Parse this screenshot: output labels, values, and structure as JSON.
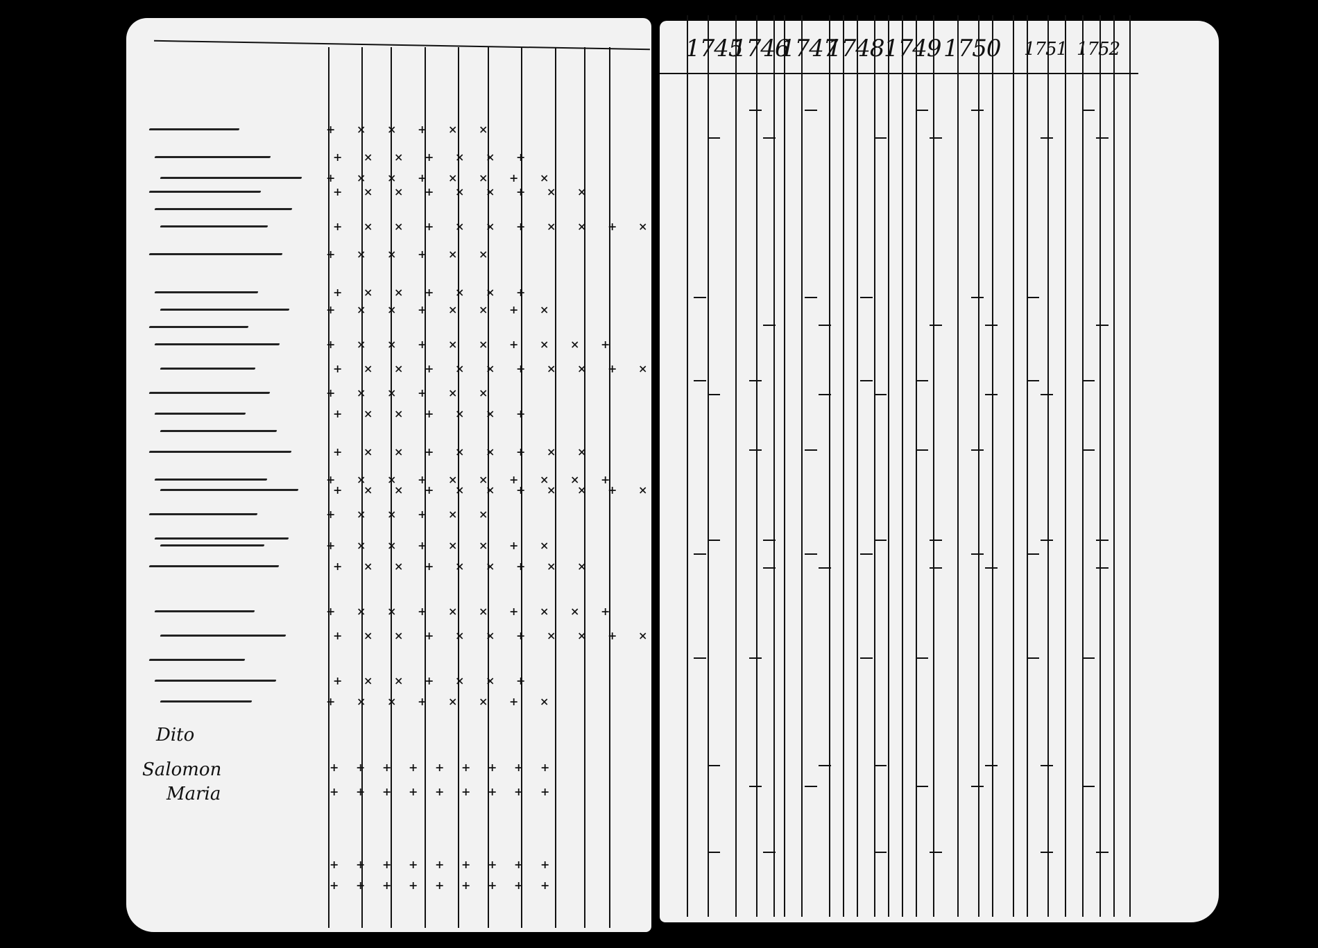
{
  "document": {
    "right_page": {
      "years": [
        "1745",
        "1746",
        "1747",
        "1748",
        "1749",
        "1750",
        "1751",
        "1752"
      ]
    },
    "left_page": {
      "names": [
        "Dito",
        "Salomon",
        "Maria"
      ]
    },
    "colors": {
      "paper": "#f2f2f2",
      "ink": "#111111",
      "background": "#000000"
    }
  }
}
